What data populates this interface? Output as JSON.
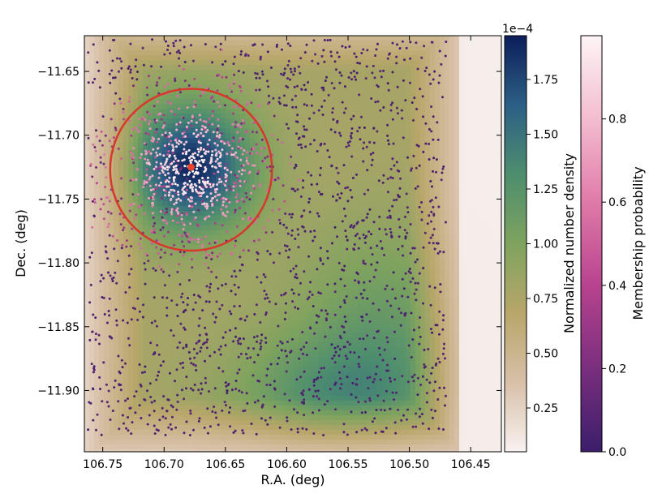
{
  "chart_data": {
    "type": "heatmap",
    "title": "",
    "xlabel": "R.A. (deg)",
    "ylabel": "Dec. (deg)",
    "xlim": [
      106.765,
      106.425
    ],
    "ylim": [
      -11.948,
      -11.622
    ],
    "x_inverted": true,
    "grid": false,
    "x_ticks": [
      "106.75",
      "106.70",
      "106.65",
      "106.60",
      "106.55",
      "106.50",
      "106.45"
    ],
    "x_tick_values": [
      106.75,
      106.7,
      106.65,
      106.6,
      106.55,
      106.5,
      106.45
    ],
    "y_ticks": [
      "−11.65",
      "−11.70",
      "−11.75",
      "−11.80",
      "−11.85",
      "−11.90"
    ],
    "y_tick_values": [
      -11.65,
      -11.7,
      -11.75,
      -11.8,
      -11.85,
      -11.9
    ],
    "density_peaks": [
      {
        "ra": 106.678,
        "dec": -11.725,
        "density": 0.00019
      },
      {
        "ra": 106.555,
        "dec": -11.905,
        "density": 0.000125
      },
      {
        "ra": 106.52,
        "dec": -11.84,
        "density": 0.000105
      }
    ],
    "cluster_center": {
      "ra": 106.678,
      "dec": -11.725,
      "color": "#e8442c"
    },
    "cluster_circle": {
      "ra": 106.678,
      "dec": -11.727,
      "radius_deg": 0.066,
      "color": "#d9372b"
    },
    "colorbar_density": {
      "label": "Normalized number density",
      "exponent_label": "1e−4",
      "range": [
        0.05,
        1.95
      ],
      "ticks": [
        "0.25",
        "0.50",
        "0.75",
        "1.00",
        "1.25",
        "1.50",
        "1.75"
      ],
      "tick_values": [
        0.25,
        0.5,
        0.75,
        1.0,
        1.25,
        1.5,
        1.75
      ],
      "colormap": [
        "#f8f2f0",
        "#d8c0a8",
        "#b8a66a",
        "#7fa35e",
        "#4d8e6e",
        "#2c5f85",
        "#0c1d5a"
      ]
    },
    "colorbar_membership": {
      "label": "Membership probability",
      "range": [
        0.0,
        1.0
      ],
      "ticks": [
        "0.0",
        "0.2",
        "0.4",
        "0.6",
        "0.8"
      ],
      "tick_values": [
        0.0,
        0.2,
        0.4,
        0.6,
        0.8
      ],
      "colormap": [
        "#3b1e6b",
        "#7a2e7e",
        "#b8438f",
        "#e07aa8",
        "#f3bdd0",
        "#fdf4f5"
      ]
    },
    "scatter_note": "member stars concentrated within circle (high probability), field stars (low probability) spread uniformly"
  }
}
